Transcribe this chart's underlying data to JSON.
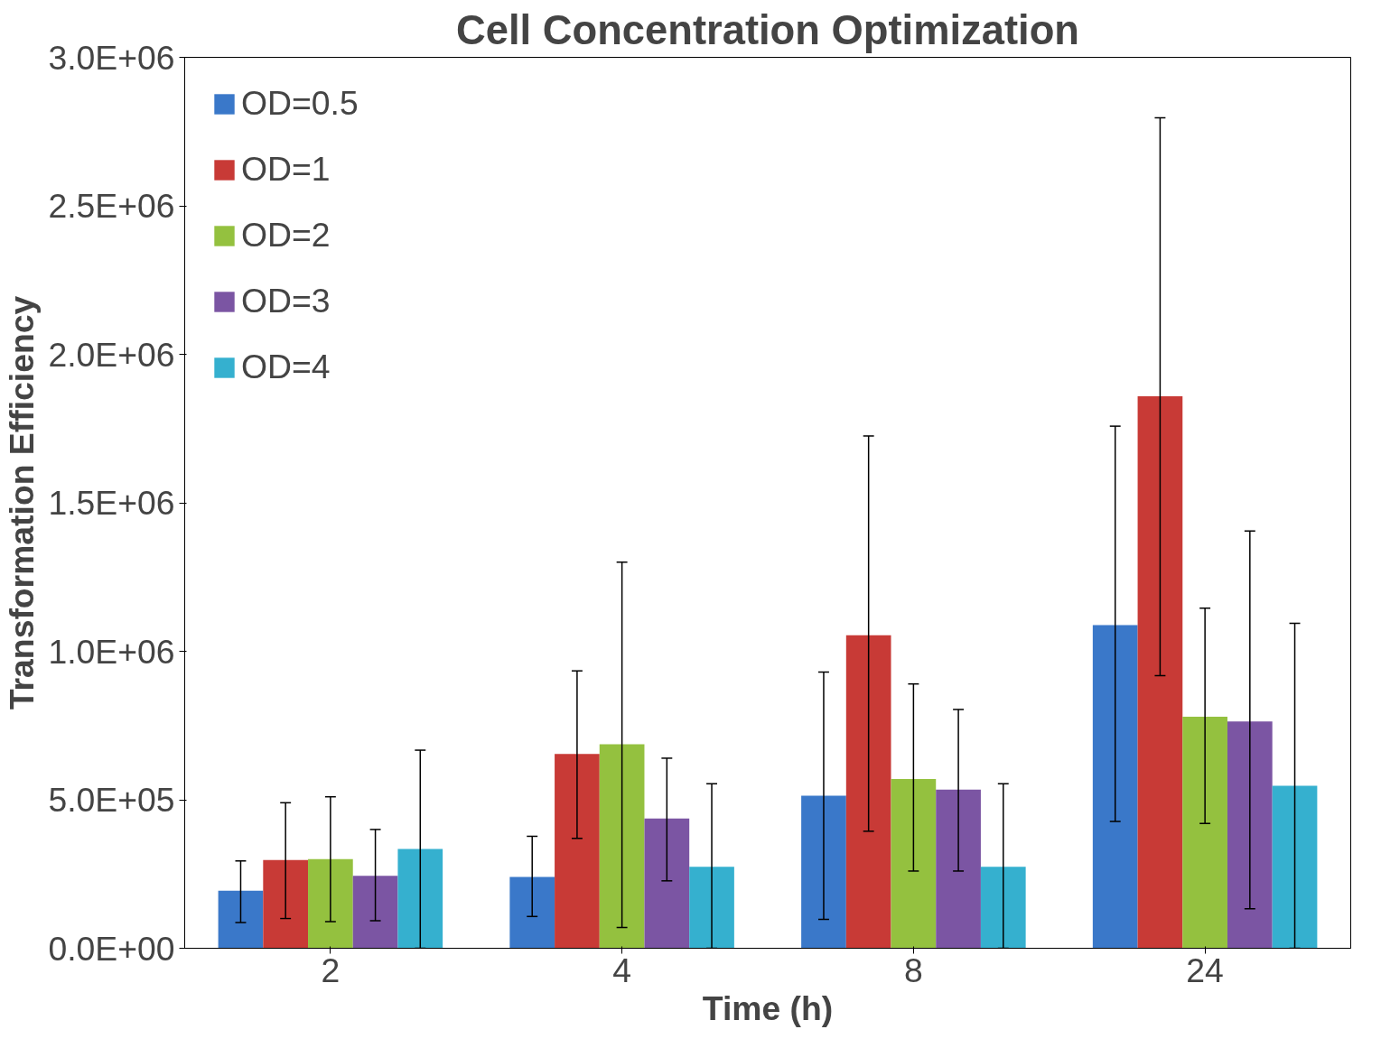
{
  "chart_data": {
    "type": "bar",
    "title": "Cell Concentration Optimization",
    "xlabel": "Time (h)",
    "ylabel": "Transformation Efficiency",
    "categories": [
      "2",
      "4",
      "8",
      "24"
    ],
    "series": [
      {
        "name": "OD=0.5",
        "color": "#3a78c9",
        "values": [
          194000,
          240000,
          514000,
          1088000
        ],
        "errors": [
          [
            87000,
            294000
          ],
          [
            107000,
            377000
          ],
          [
            97000,
            930000
          ],
          [
            427000,
            1758000
          ]
        ]
      },
      {
        "name": "OD=1",
        "color": "#c83a36",
        "values": [
          297000,
          654000,
          1054000,
          1859000
        ],
        "errors": [
          [
            100000,
            490000
          ],
          [
            370000,
            934000
          ],
          [
            394000,
            1725000
          ],
          [
            918000,
            2796000
          ]
        ]
      },
      {
        "name": "OD=2",
        "color": "#94c13f",
        "values": [
          300000,
          687000,
          570000,
          780000
        ],
        "errors": [
          [
            90000,
            510000
          ],
          [
            70000,
            1300000
          ],
          [
            260000,
            890000
          ],
          [
            420000,
            1145000
          ]
        ]
      },
      {
        "name": "OD=3",
        "color": "#7b55a3",
        "values": [
          244000,
          437000,
          534000,
          764000
        ],
        "errors": [
          [
            93000,
            400000
          ],
          [
            227000,
            640000
          ],
          [
            260000,
            804000
          ],
          [
            133000,
            1405000
          ]
        ]
      },
      {
        "name": "OD=4",
        "color": "#35b0cf",
        "values": [
          334000,
          274000,
          274000,
          547000
        ],
        "errors": [
          [
            0,
            667000
          ],
          [
            0,
            554000
          ],
          [
            0,
            554000
          ],
          [
            0,
            1094000
          ]
        ]
      }
    ],
    "ylim": [
      0,
      3000000
    ],
    "yticks": [
      {
        "value": 0,
        "label": "0.0E+00"
      },
      {
        "value": 500000,
        "label": "5.0E+05"
      },
      {
        "value": 1000000,
        "label": "1.0E+06"
      },
      {
        "value": 1500000,
        "label": "1.5E+06"
      },
      {
        "value": 2000000,
        "label": "2.0E+06"
      },
      {
        "value": 2500000,
        "label": "2.5E+06"
      },
      {
        "value": 3000000,
        "label": "3.0E+06"
      }
    ],
    "grid": false,
    "legend": "top left"
  }
}
